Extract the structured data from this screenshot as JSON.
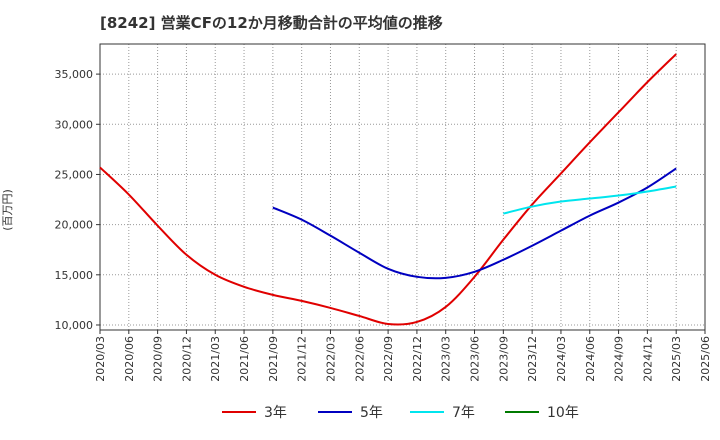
{
  "title": "[8242]  営業CFの12か月移動合計の平均値の推移",
  "y_unit": "(百万円)",
  "chart_data": {
    "type": "line",
    "title": "[8242]  営業CFの12か月移動合計の平均値の推移",
    "ylabel": "(百万円)",
    "xlabel": "",
    "ylim": [
      9500,
      38000
    ],
    "yticks": [
      10000,
      15000,
      20000,
      25000,
      30000,
      35000
    ],
    "ytick_labels": [
      "10,000",
      "15,000",
      "20,000",
      "25,000",
      "30,000",
      "35,000"
    ],
    "xticks": [
      "2020/03",
      "2020/06",
      "2020/09",
      "2020/12",
      "2021/03",
      "2021/06",
      "2021/09",
      "2021/12",
      "2022/03",
      "2022/06",
      "2022/09",
      "2022/12",
      "2023/03",
      "2023/06",
      "2023/09",
      "2023/12",
      "2024/03",
      "2024/06",
      "2024/09",
      "2024/12",
      "2025/03",
      "2025/06"
    ],
    "grid": true,
    "legend_position": "bottom",
    "series": [
      {
        "name": "3年",
        "color": "#e00000",
        "x": [
          "2020/03",
          "2020/06",
          "2020/09",
          "2020/12",
          "2021/03",
          "2021/06",
          "2021/09",
          "2021/12",
          "2022/03",
          "2022/06",
          "2022/09",
          "2022/12",
          "2023/03",
          "2023/06",
          "2023/09",
          "2023/12",
          "2024/03",
          "2024/06",
          "2024/09",
          "2024/12",
          "2025/03"
        ],
        "values": [
          25700,
          23000,
          19900,
          17000,
          15000,
          13800,
          13000,
          12400,
          11700,
          10900,
          10100,
          10300,
          11800,
          14800,
          18500,
          22000,
          25100,
          28200,
          31200,
          34200,
          37000
        ]
      },
      {
        "name": "5年",
        "color": "#0000c0",
        "x": [
          "2021/09",
          "2021/12",
          "2022/03",
          "2022/06",
          "2022/09",
          "2022/12",
          "2023/03",
          "2023/06",
          "2023/09",
          "2023/12",
          "2024/03",
          "2024/06",
          "2024/09",
          "2024/12",
          "2025/03"
        ],
        "values": [
          21700,
          20500,
          18900,
          17200,
          15600,
          14800,
          14700,
          15300,
          16500,
          17900,
          19400,
          20900,
          22200,
          23700,
          25600
        ]
      },
      {
        "name": "7年",
        "color": "#00e5ee",
        "x": [
          "2023/09",
          "2023/12",
          "2024/03",
          "2024/06",
          "2024/09",
          "2024/12",
          "2025/03"
        ],
        "values": [
          21100,
          21800,
          22300,
          22600,
          22900,
          23300,
          23800
        ]
      },
      {
        "name": "10年",
        "color": "#007a00",
        "x": [],
        "values": []
      }
    ]
  }
}
